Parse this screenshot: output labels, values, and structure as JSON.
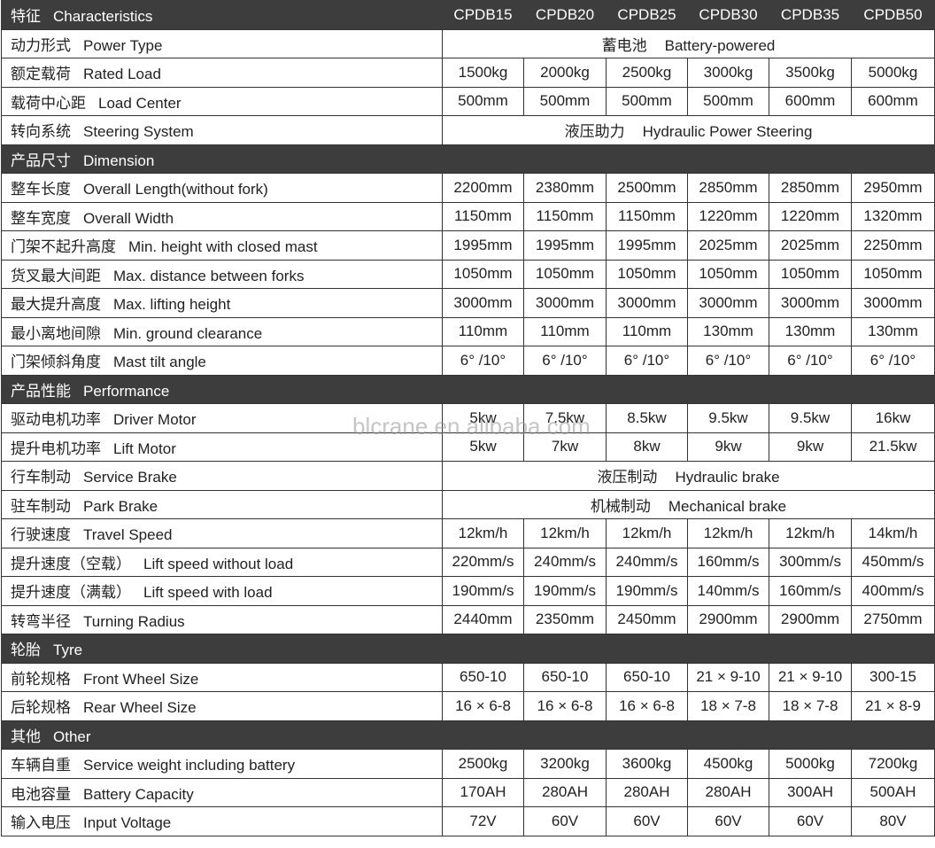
{
  "table": {
    "header": {
      "cn": "特征",
      "en": "Characteristics",
      "models": [
        "CPDB15",
        "CPDB20",
        "CPDB25",
        "CPDB30",
        "CPDB35",
        "CPDB50"
      ]
    },
    "groups": [
      {
        "rows": [
          {
            "cn": "动力形式",
            "en": "Power Type",
            "span": {
              "cn": "蓄电池",
              "en": "Battery-powered"
            }
          },
          {
            "cn": "额定载荷",
            "en": "Rated Load",
            "values": [
              "1500kg",
              "2000kg",
              "2500kg",
              "3000kg",
              "3500kg",
              "5000kg"
            ]
          },
          {
            "cn": "载荷中心距",
            "en": "Load Center",
            "values": [
              "500mm",
              "500mm",
              "500mm",
              "500mm",
              "600mm",
              "600mm"
            ]
          },
          {
            "cn": "转向系统",
            "en": "Steering System",
            "span": {
              "cn": "液压助力",
              "en": "Hydraulic Power Steering"
            }
          }
        ]
      },
      {
        "title": {
          "cn": "产品尺寸",
          "en": "Dimension"
        },
        "rows": [
          {
            "cn": "整车长度",
            "en": "Overall Length(without fork)",
            "values": [
              "2200mm",
              "2380mm",
              "2500mm",
              "2850mm",
              "2850mm",
              "2950mm"
            ]
          },
          {
            "cn": "整车宽度",
            "en": "Overall Width",
            "values": [
              "1150mm",
              "1150mm",
              "1150mm",
              "1220mm",
              "1220mm",
              "1320mm"
            ]
          },
          {
            "cn": "门架不起升高度",
            "en": "Min. height with closed mast",
            "values": [
              "1995mm",
              "1995mm",
              "1995mm",
              "2025mm",
              "2025mm",
              "2250mm"
            ]
          },
          {
            "cn": "货叉最大间距",
            "en": "Max. distance between forks",
            "values": [
              "1050mm",
              "1050mm",
              "1050mm",
              "1050mm",
              "1050mm",
              "1050mm"
            ]
          },
          {
            "cn": "最大提升高度",
            "en": "Max. lifting height",
            "values": [
              "3000mm",
              "3000mm",
              "3000mm",
              "3000mm",
              "3000mm",
              "3000mm"
            ]
          },
          {
            "cn": "最小离地间隙",
            "en": "Min. ground clearance",
            "values": [
              "110mm",
              "110mm",
              "110mm",
              "130mm",
              "130mm",
              "130mm"
            ]
          },
          {
            "cn": "门架倾斜角度",
            "en": "Mast tilt angle",
            "values": [
              "6° /10°",
              "6° /10°",
              "6° /10°",
              "6° /10°",
              "6° /10°",
              "6° /10°"
            ]
          }
        ]
      },
      {
        "title": {
          "cn": "产品性能",
          "en": "Performance"
        },
        "rows": [
          {
            "cn": "驱动电机功率",
            "en": "Driver Motor",
            "values": [
              "5kw",
              "7.5kw",
              "8.5kw",
              "9.5kw",
              "9.5kw",
              "16kw"
            ]
          },
          {
            "cn": "提升电机功率",
            "en": "Lift Motor",
            "values": [
              "5kw",
              "7kw",
              "8kw",
              "9kw",
              "9kw",
              "21.5kw"
            ]
          },
          {
            "cn": "行车制动",
            "en": "Service Brake",
            "span": {
              "cn": "液压制动",
              "en": "Hydraulic brake"
            }
          },
          {
            "cn": "驻车制动",
            "en": "Park Brake",
            "span": {
              "cn": "机械制动",
              "en": "Mechanical brake"
            }
          },
          {
            "cn": "行驶速度",
            "en": "Travel Speed",
            "values": [
              "12km/h",
              "12km/h",
              "12km/h",
              "12km/h",
              "12km/h",
              "14km/h"
            ]
          },
          {
            "cn": "提升速度（空载）",
            "en": "Lift speed without load",
            "values": [
              "220mm/s",
              "240mm/s",
              "240mm/s",
              "160mm/s",
              "300mm/s",
              "450mm/s"
            ]
          },
          {
            "cn": "提升速度（满载）",
            "en": "Lift speed with load",
            "values": [
              "190mm/s",
              "190mm/s",
              "190mm/s",
              "140mm/s",
              "160mm/s",
              "400mm/s"
            ]
          },
          {
            "cn": "转弯半径",
            "en": "Turning Radius",
            "values": [
              "2440mm",
              "2350mm",
              "2450mm",
              "2900mm",
              "2900mm",
              "2750mm"
            ]
          }
        ]
      },
      {
        "title": {
          "cn": "轮胎",
          "en": "Tyre"
        },
        "rows": [
          {
            "cn": "前轮规格",
            "en": "Front Wheel Size",
            "values": [
              "650-10",
              "650-10",
              "650-10",
              "21 × 9-10",
              "21 × 9-10",
              "300-15"
            ]
          },
          {
            "cn": "后轮规格",
            "en": "Rear Wheel Size",
            "values": [
              "16 × 6-8",
              "16 × 6-8",
              "16 × 6-8",
              "18 × 7-8",
              "18 × 7-8",
              "21 × 8-9"
            ]
          }
        ]
      },
      {
        "title": {
          "cn": "其他",
          "en": "Other"
        },
        "rows": [
          {
            "cn": "车辆自重",
            "en": "Service weight including battery",
            "values": [
              "2500kg",
              "3200kg",
              "3600kg",
              "4500kg",
              "5000kg",
              "7200kg"
            ]
          },
          {
            "cn": "电池容量",
            "en": "Battery Capacity",
            "values": [
              "170AH",
              "280AH",
              "280AH",
              "280AH",
              "300AH",
              "500AH"
            ]
          },
          {
            "cn": "输入电压",
            "en": "Input Voltage",
            "values": [
              "72V",
              "60V",
              "60V",
              "60V",
              "60V",
              "80V"
            ]
          }
        ]
      }
    ]
  },
  "watermark": "blcrane.en.alibaba.com"
}
